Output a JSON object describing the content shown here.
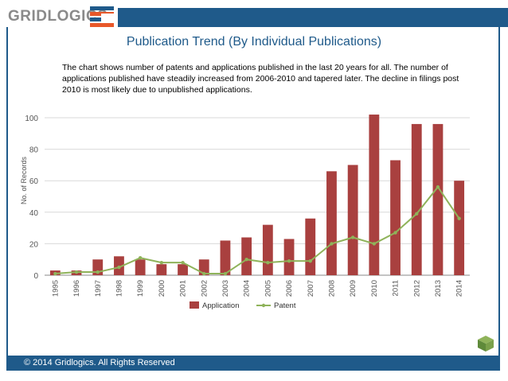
{
  "brand": {
    "name": "GRIDLOGICS",
    "color": "#1f5a8a",
    "accent": "#e8582a"
  },
  "slide": {
    "title": "Publication Trend (By Individual Publications)",
    "description": "The chart shows number of patents and applications published in the last 20 years for all. The number of applications published have steadily increased from  2006-2010 and tapered later. The decline in filings post 2010 is most likely due to unpublished applications.",
    "footer": "© 2014 Gridlogics. All Rights Reserved"
  },
  "chart_data": {
    "type": "bar",
    "title": "",
    "xlabel": "",
    "ylabel": "No. of Records",
    "ylim": [
      0,
      100
    ],
    "yticks": [
      0,
      20,
      40,
      60,
      80,
      100
    ],
    "grid": true,
    "categories": [
      "1995",
      "1996",
      "1997",
      "1998",
      "1999",
      "2000",
      "2001",
      "2002",
      "2003",
      "2004",
      "2005",
      "2006",
      "2007",
      "2008",
      "2009",
      "2010",
      "2011",
      "2012",
      "2013",
      "2014"
    ],
    "series": [
      {
        "name": "Application",
        "kind": "bar",
        "color": "#a9403f",
        "values": [
          3,
          3,
          10,
          12,
          10,
          7,
          7,
          10,
          22,
          24,
          32,
          23,
          36,
          66,
          70,
          102,
          73,
          96,
          96,
          60
        ]
      },
      {
        "name": "Patent",
        "kind": "line",
        "color": "#8fb35a",
        "values": [
          1,
          2,
          2,
          5,
          11,
          8,
          8,
          1,
          1,
          10,
          8,
          9,
          9,
          20,
          24,
          20,
          27,
          39,
          56,
          36
        ]
      }
    ],
    "legend": {
      "position": "bottom",
      "entries": [
        "Application",
        "Patent"
      ]
    }
  }
}
